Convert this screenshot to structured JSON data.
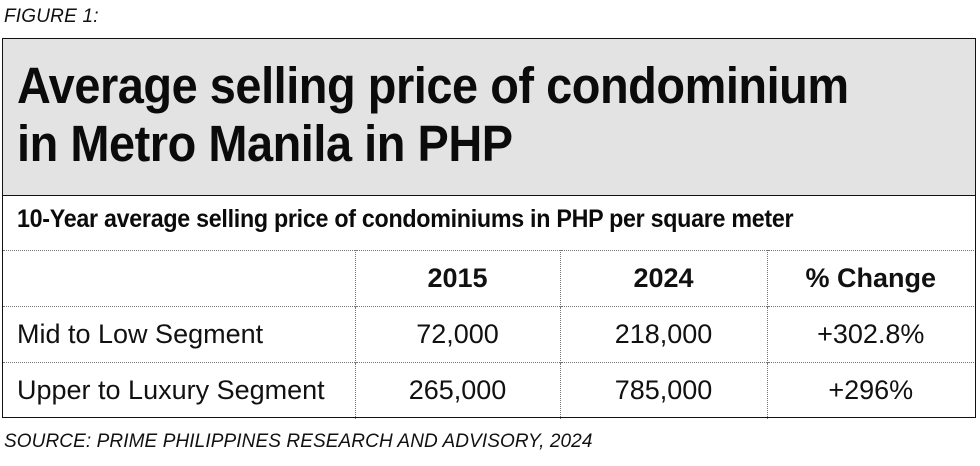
{
  "figure_label": "FIGURE 1:",
  "source": "SOURCE: PRIME PHILIPPINES RESEARCH AND ADVISORY, 2024",
  "chart_data": {
    "type": "table",
    "title_lines": [
      "Average selling price of condominium",
      "in Metro Manila in PHP"
    ],
    "subtitle": "10-Year average selling price of condominiums in PHP per square meter",
    "columns": [
      "",
      "2015",
      "2024",
      "% Change"
    ],
    "rows": [
      {
        "label": "Mid to Low Segment",
        "values": [
          "72,000",
          "218,000",
          "+302.8%"
        ]
      },
      {
        "label": "Upper to Luxury Segment",
        "values": [
          "265,000",
          "785,000",
          "+296%"
        ]
      }
    ]
  }
}
